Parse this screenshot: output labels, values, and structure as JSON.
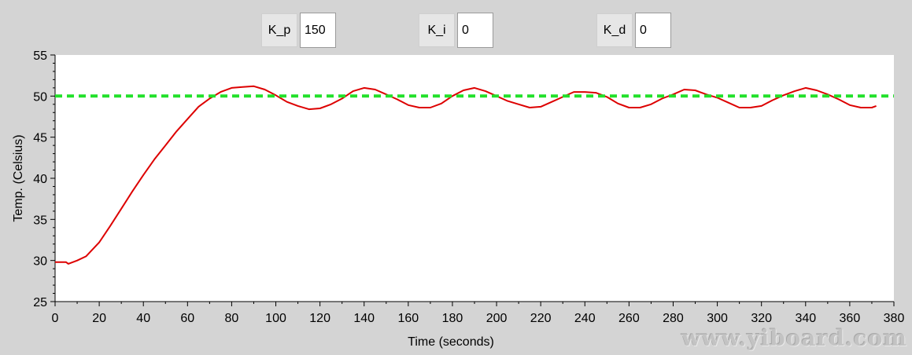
{
  "controls": {
    "kp": {
      "label": "K_p",
      "value": "150"
    },
    "ki": {
      "label": "K_i",
      "value": "0"
    },
    "kd": {
      "label": "K_d",
      "value": "0"
    }
  },
  "watermark": "www.yiboard.com",
  "chart_data": {
    "type": "line",
    "title": "",
    "xlabel": "Time (seconds)",
    "ylabel": "Temp. (Celsius)",
    "xlim": [
      0,
      380
    ],
    "ylim": [
      25,
      55
    ],
    "xticks": [
      0,
      20,
      40,
      60,
      80,
      100,
      120,
      140,
      160,
      180,
      200,
      220,
      240,
      260,
      280,
      300,
      320,
      340,
      360,
      380
    ],
    "yticks": [
      25,
      30,
      35,
      40,
      45,
      50,
      55
    ],
    "grid": false,
    "series": [
      {
        "color": "#dd0000",
        "style": "solid",
        "x": [
          0,
          5,
          6,
          10,
          14,
          20,
          25,
          30,
          35,
          40,
          45,
          50,
          55,
          60,
          65,
          70,
          75,
          80,
          85,
          90,
          95,
          100,
          105,
          110,
          115,
          120,
          125,
          130,
          135,
          140,
          145,
          150,
          155,
          160,
          165,
          170,
          175,
          180,
          185,
          190,
          195,
          200,
          205,
          210,
          215,
          220,
          225,
          230,
          235,
          240,
          245,
          250,
          255,
          260,
          265,
          270,
          275,
          280,
          285,
          290,
          295,
          300,
          305,
          310,
          315,
          320,
          325,
          330,
          335,
          340,
          345,
          350,
          355,
          360,
          365,
          370,
          372
        ],
        "y": [
          29.8,
          29.8,
          29.6,
          30.0,
          30.5,
          32.2,
          34.2,
          36.3,
          38.4,
          40.4,
          42.3,
          44.0,
          45.7,
          47.2,
          48.7,
          49.7,
          50.5,
          51.0,
          51.1,
          51.2,
          50.8,
          50.1,
          49.3,
          48.8,
          48.4,
          48.5,
          49.0,
          49.7,
          50.6,
          51.0,
          50.8,
          50.2,
          49.6,
          48.9,
          48.6,
          48.6,
          49.1,
          50.0,
          50.7,
          51.0,
          50.6,
          50.0,
          49.4,
          49.0,
          48.6,
          48.7,
          49.3,
          49.9,
          50.5,
          50.5,
          50.4,
          49.9,
          49.1,
          48.6,
          48.6,
          49.0,
          49.7,
          50.2,
          50.8,
          50.7,
          50.2,
          49.8,
          49.2,
          48.6,
          48.6,
          48.8,
          49.5,
          50.1,
          50.6,
          51.0,
          50.7,
          50.2,
          49.6,
          48.9,
          48.6,
          48.6,
          48.8
        ]
      },
      {
        "color": "#22e02a",
        "style": "dashed",
        "x": [
          0,
          380
        ],
        "y": [
          50,
          50
        ]
      }
    ]
  }
}
